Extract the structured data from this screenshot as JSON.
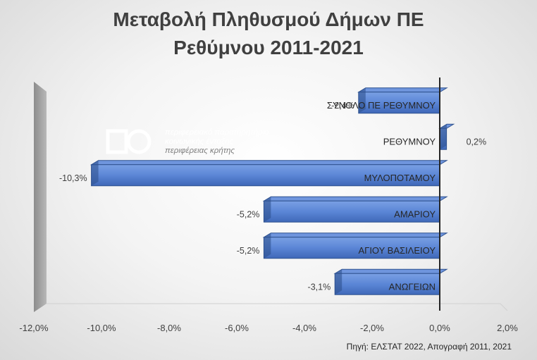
{
  "title_line1": "Μεταβολή Πληθυσμού Δήμων ΠΕ",
  "title_line2": "Ρεθύμνου 2011-2021",
  "source": "Πηγή: ΕΛΣΤΑΤ 2022, Απογραφή 2011, 2021",
  "logo": {
    "line1": "περιφερειακό παρατηρητήριο",
    "line2": "κοινωνικής ένταξης",
    "line3": "περιφέρειας κρήτης"
  },
  "chart_data": {
    "type": "bar",
    "orientation": "horizontal",
    "title": "Μεταβολή Πληθυσμού Δήμων ΠΕ Ρεθύμνου 2011-2021",
    "categories": [
      "ΣΥΝΟΛΟ ΠΕ ΡΕΘΥΜΝΟΥ",
      "ΡΕΘΥΜΝΟΥ",
      "ΜΥΛΟΠΟΤΑΜΟΥ",
      "ΑΜΑΡΙΟΥ",
      "ΑΓΙΟΥ ΒΑΣΙΛΕΙΟΥ",
      "ΑΝΩΓΕΙΩΝ"
    ],
    "values": [
      -2.4,
      0.2,
      -10.3,
      -5.2,
      -5.2,
      -3.1
    ],
    "data_labels": [
      "-2,4%",
      "0,2%",
      "-10,3%",
      "-5,2%",
      "-5,2%",
      "-3,1%"
    ],
    "xlim": [
      -12,
      2
    ],
    "xticks": [
      "-12,0%",
      "-10,0%",
      "-8,0%",
      "-6,0%",
      "-4,0%",
      "-2,0%",
      "0,0%",
      "2,0%"
    ],
    "xtick_values": [
      -12,
      -10,
      -8,
      -6,
      -4,
      -2,
      0,
      2
    ],
    "bar_color": "#4472C4",
    "bar_color_light": "#6f95dd",
    "bar_edge_color": "#2f528f",
    "wall_color": "#a6a6a6",
    "grid": false,
    "xlabel": "",
    "ylabel": ""
  }
}
